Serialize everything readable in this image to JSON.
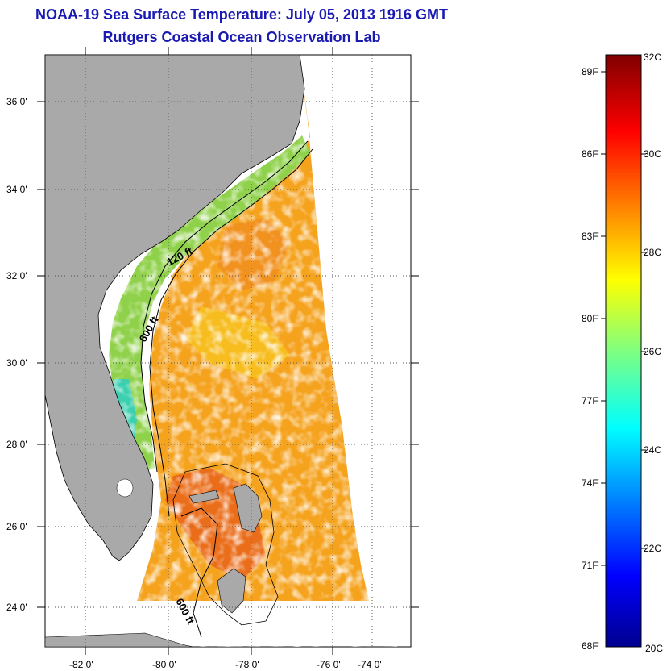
{
  "title": "NOAA-19 Sea Surface Temperature:  July 05, 2013 1916 GMT",
  "subtitle": "Rutgers Coastal Ocean Observation Lab",
  "map": {
    "lat_labels": [
      "36 0'",
      "34 0'",
      "32 0'",
      "30 0'",
      "28 0'",
      "26 0'",
      "24 0'"
    ],
    "lon_labels": [
      "-82 0'",
      "-80 0'",
      "-78 0'",
      "-76 0'",
      "-74 0'"
    ],
    "contour_labels": [
      "120 ft",
      "600 ft",
      "600 ft"
    ],
    "land_color": "#a9a9a9",
    "no_data_color": "#ffffff"
  },
  "colorbar": {
    "fahrenheit_labels": [
      "89F",
      "86F",
      "83F",
      "80F",
      "77F",
      "74F",
      "71F",
      "68F"
    ],
    "celsius_labels": [
      "32C",
      "30C",
      "28C",
      "26C",
      "24C",
      "22C",
      "20C"
    ],
    "range_c": [
      20,
      32
    ],
    "colormap": "jet"
  }
}
